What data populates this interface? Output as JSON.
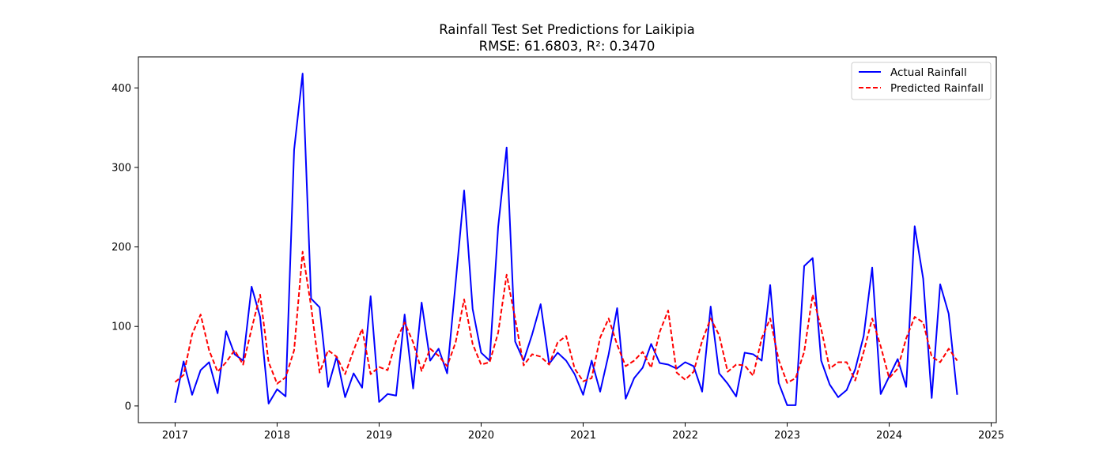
{
  "chart_data": {
    "type": "line",
    "title": "Rainfall Test Set Predictions for Laikipia",
    "subtitle": "RMSE: 61.6803, R²: 0.3470",
    "xlabel": "",
    "ylabel": "",
    "x_axis": {
      "min": 2016.64,
      "max": 2025.05,
      "ticks": [
        "2017",
        "2018",
        "2019",
        "2020",
        "2021",
        "2022",
        "2023",
        "2024",
        "2025"
      ]
    },
    "y_axis": {
      "min": -21,
      "max": 439,
      "ticks": [
        "0",
        "100",
        "200",
        "300",
        "400"
      ]
    },
    "grid": false,
    "legend_position": "top-right",
    "x": [
      "2017-01",
      "2017-02",
      "2017-03",
      "2017-04",
      "2017-05",
      "2017-06",
      "2017-07",
      "2017-08",
      "2017-09",
      "2017-10",
      "2017-11",
      "2017-12",
      "2018-01",
      "2018-02",
      "2018-03",
      "2018-04",
      "2018-05",
      "2018-06",
      "2018-07",
      "2018-08",
      "2018-09",
      "2018-10",
      "2018-11",
      "2018-12",
      "2019-01",
      "2019-02",
      "2019-03",
      "2019-04",
      "2019-05",
      "2019-06",
      "2019-07",
      "2019-08",
      "2019-09",
      "2019-10",
      "2019-11",
      "2019-12",
      "2020-01",
      "2020-02",
      "2020-03",
      "2020-04",
      "2020-05",
      "2020-06",
      "2020-07",
      "2020-08",
      "2020-09",
      "2020-10",
      "2020-11",
      "2020-12",
      "2021-01",
      "2021-02",
      "2021-03",
      "2021-04",
      "2021-05",
      "2021-06",
      "2021-07",
      "2021-08",
      "2021-09",
      "2021-10",
      "2021-11",
      "2021-12",
      "2022-01",
      "2022-02",
      "2022-03",
      "2022-04",
      "2022-05",
      "2022-06",
      "2022-07",
      "2022-08",
      "2022-09",
      "2022-10",
      "2022-11",
      "2022-12",
      "2023-01",
      "2023-02",
      "2023-03",
      "2023-04",
      "2023-05",
      "2023-06",
      "2023-07",
      "2023-08",
      "2023-09",
      "2023-10",
      "2023-11",
      "2023-12",
      "2024-01",
      "2024-02",
      "2024-03",
      "2024-04",
      "2024-05",
      "2024-06",
      "2024-07",
      "2024-08",
      "2024-09"
    ],
    "series": [
      {
        "name": "Actual Rainfall",
        "color": "#0000ff",
        "style": "solid",
        "values": [
          4,
          56,
          14,
          45,
          55,
          16,
          94,
          65,
          57,
          150,
          112,
          3,
          21,
          12,
          322,
          418,
          135,
          124,
          24,
          62,
          11,
          41,
          23,
          138,
          5,
          15,
          13,
          115,
          22,
          130,
          57,
          72,
          41,
          155,
          271,
          122,
          67,
          57,
          225,
          325,
          81,
          57,
          90,
          128,
          53,
          67,
          57,
          40,
          14,
          57,
          18,
          65,
          123,
          9,
          35,
          48,
          78,
          54,
          52,
          47,
          55,
          50,
          18,
          125,
          41,
          28,
          12,
          67,
          65,
          57,
          152,
          29,
          1,
          1,
          176,
          186,
          57,
          27,
          11,
          20,
          46,
          88,
          174,
          15,
          37,
          59,
          24,
          226,
          160,
          10,
          153,
          116,
          14
        ]
      },
      {
        "name": "Predicted Rainfall",
        "color": "#ff0000",
        "style": "dashed",
        "values": [
          30,
          39,
          90,
          115,
          70,
          43,
          55,
          70,
          52,
          97,
          140,
          55,
          28,
          36,
          70,
          194,
          125,
          42,
          70,
          62,
          40,
          70,
          97,
          40,
          49,
          45,
          82,
          105,
          80,
          44,
          72,
          63,
          50,
          80,
          134,
          78,
          52,
          55,
          92,
          165,
          110,
          51,
          65,
          62,
          52,
          80,
          88,
          47,
          31,
          35,
          86,
          110,
          77,
          50,
          57,
          68,
          48,
          93,
          120,
          42,
          33,
          43,
          82,
          110,
          89,
          43,
          52,
          51,
          38,
          85,
          110,
          58,
          29,
          35,
          68,
          140,
          97,
          47,
          55,
          55,
          32,
          68,
          110,
          75,
          35,
          47,
          85,
          112,
          105,
          62,
          55,
          72,
          57
        ]
      }
    ]
  }
}
